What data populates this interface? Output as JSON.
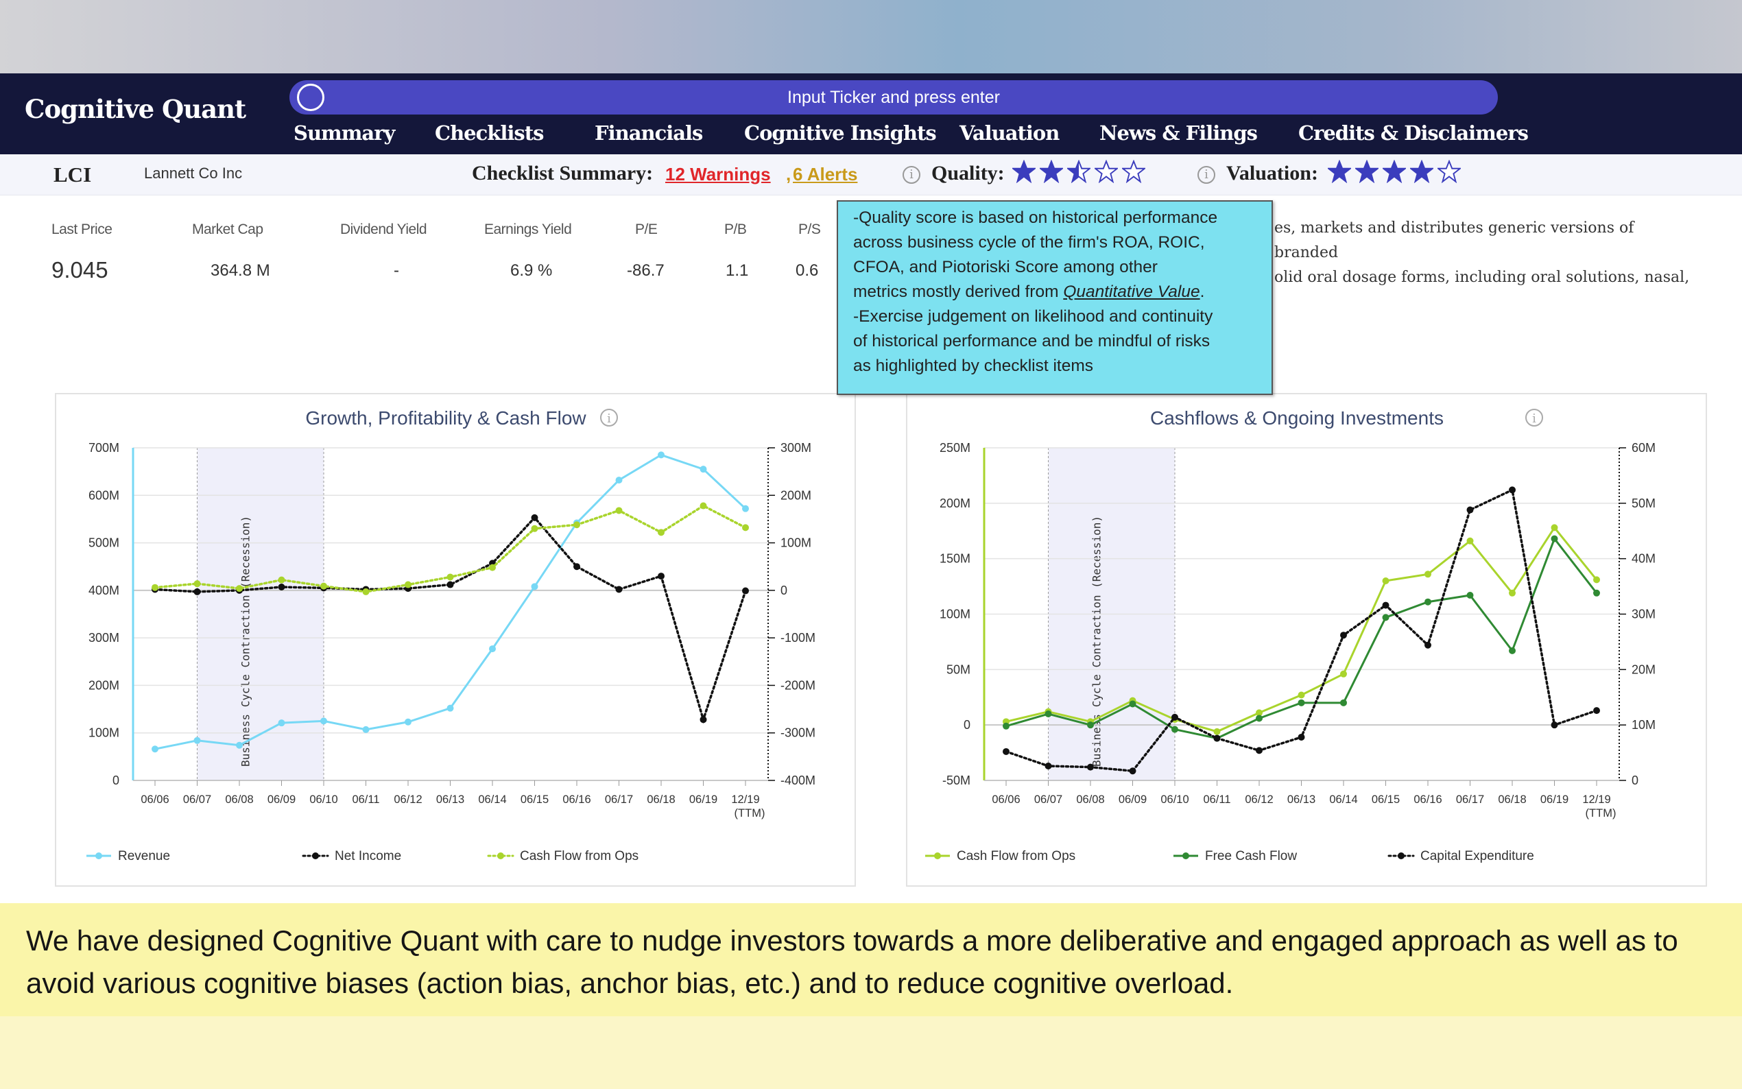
{
  "app": {
    "title": "Cognitive Quant"
  },
  "search": {
    "placeholder": "Input Ticker and press enter"
  },
  "nav": {
    "items": [
      "Summary",
      "Checklists",
      "Financials",
      "Cognitive Insights",
      "Valuation",
      "News & Filings",
      "Credits & Disclaimers"
    ]
  },
  "summary": {
    "ticker": "LCI",
    "company": "Lannett Co Inc",
    "checklist_label": "Checklist Summary:",
    "warnings": "12 Warnings",
    "sep": ",",
    "alerts": "6 Alerts",
    "quality_label": "Quality:",
    "quality_stars": 2.5,
    "valuation_label": "Valuation:",
    "valuation_stars": 4
  },
  "metrics": [
    {
      "label": "Last Price",
      "value": "9.045"
    },
    {
      "label": "Market Cap",
      "value": "364.8 M"
    },
    {
      "label": "Dividend Yield",
      "value": "-"
    },
    {
      "label": "Earnings Yield",
      "value": "6.9 %"
    },
    {
      "label": "P/E",
      "value": "-86.7"
    },
    {
      "label": "P/B",
      "value": "1.1"
    },
    {
      "label": "P/S",
      "value": "0.6"
    }
  ],
  "description": {
    "line1": "es, markets and distributes generic versions of branded",
    "line2": "olid oral dosage forms, including oral solutions, nasal,"
  },
  "tooltip": {
    "line1": "-Quality score is based on historical performance",
    "line2": "across business cycle of the firm's ROA, ROIC,",
    "line3": "CFOA, and Piotoriski Score among other",
    "line4_pre": "metrics mostly derived from ",
    "line4_link": "Quantitative Value",
    "line4_post": ".",
    "line5": "-Exercise judgement on likelihood and continuity",
    "line6": "of historical performance and be mindful of risks",
    "line7": "as highlighted by checklist items"
  },
  "colors": {
    "navbar": "#14173a",
    "search": "#4a48c2",
    "star": "#3b3dbd",
    "revenue": "#77d8f5",
    "net_income": "#111111",
    "cfo": "#a9d42c",
    "fcf": "#2f8a33",
    "capex": "#111111",
    "recession": "#efeffa",
    "tooltip": "#7de1f0",
    "banner": "#faf5a9"
  },
  "chart_data": [
    {
      "type": "line",
      "title": "Growth, Profitability & Cash Flow",
      "x": [
        "06/06",
        "06/07",
        "06/08",
        "06/09",
        "06/10",
        "06/11",
        "06/12",
        "06/13",
        "06/14",
        "06/15",
        "06/16",
        "06/17",
        "06/18",
        "06/19",
        "12/19"
      ],
      "x_last_sub": "(TTM)",
      "shade_label": "Business Cycle Contraction (Recession)",
      "shade_range": [
        "06/07",
        "06/10"
      ],
      "y_left": {
        "min": 0,
        "max": 700,
        "ticks": [
          0,
          100,
          200,
          300,
          400,
          500,
          600,
          700
        ],
        "tick_labels": [
          "0",
          "100M",
          "200M",
          "300M",
          "400M",
          "500M",
          "600M",
          "700M"
        ]
      },
      "y_right": {
        "min": -400,
        "max": 300,
        "ticks": [
          -400,
          -300,
          -200,
          -100,
          0,
          100,
          200,
          300
        ],
        "tick_labels": [
          "-400M",
          "-300M",
          "-200M",
          "-100M",
          "0",
          "100M",
          "200M",
          "300M"
        ]
      },
      "series": [
        {
          "name": "Revenue",
          "axis": "left",
          "style": "solid",
          "color": "#77d8f5",
          "values": [
            66,
            84,
            74,
            121,
            125,
            107,
            123,
            152,
            277,
            408,
            542,
            632,
            685,
            655,
            572
          ]
        },
        {
          "name": "Net Income",
          "axis": "right",
          "style": "dotted",
          "color": "#111111",
          "values": [
            2,
            -3,
            0,
            7,
            5,
            2,
            4,
            12,
            57,
            153,
            50,
            2,
            30,
            -272,
            -1
          ]
        },
        {
          "name": "Cash Flow from Ops",
          "axis": "right",
          "style": "dotted",
          "color": "#a9d42c",
          "values": [
            6,
            14,
            4,
            22,
            9,
            -3,
            12,
            28,
            48,
            130,
            138,
            168,
            122,
            178,
            132
          ]
        }
      ]
    },
    {
      "type": "line",
      "title": "Cashflows & Ongoing Investments",
      "x": [
        "06/06",
        "06/07",
        "06/08",
        "06/09",
        "06/10",
        "06/11",
        "06/12",
        "06/13",
        "06/14",
        "06/15",
        "06/16",
        "06/17",
        "06/18",
        "06/19",
        "12/19"
      ],
      "x_last_sub": "(TTM)",
      "shade_label": "Business Cycle Contraction (Recession)",
      "shade_range": [
        "06/07",
        "06/10"
      ],
      "y_left": {
        "min": -50,
        "max": 250,
        "ticks": [
          -50,
          0,
          50,
          100,
          150,
          200,
          250
        ],
        "tick_labels": [
          "-50M",
          "0",
          "50M",
          "100M",
          "150M",
          "200M",
          "250M"
        ]
      },
      "y_right": {
        "min": 0,
        "max": 60,
        "ticks": [
          0,
          10,
          20,
          30,
          40,
          50,
          60
        ],
        "tick_labels": [
          "0",
          "10M",
          "20M",
          "30M",
          "40M",
          "50M",
          "60M"
        ]
      },
      "series": [
        {
          "name": "Cash Flow from Ops",
          "axis": "left",
          "style": "solid",
          "color": "#a9d42c",
          "values": [
            3,
            12,
            3,
            22,
            5,
            -6,
            11,
            27,
            46,
            130,
            136,
            166,
            119,
            178,
            131
          ]
        },
        {
          "name": "Free Cash Flow",
          "axis": "left",
          "style": "solid",
          "color": "#2f8a33",
          "values": [
            -1,
            10,
            0,
            19,
            -4,
            -12,
            6,
            20,
            20,
            97,
            111,
            117,
            67,
            168,
            119
          ]
        },
        {
          "name": "Capital Expenditure",
          "axis": "right",
          "style": "dotted",
          "color": "#111111",
          "values": [
            5.2,
            2.6,
            2.4,
            1.7,
            11.4,
            7.6,
            5.4,
            7.8,
            26.2,
            31.6,
            24.4,
            48.8,
            52.4,
            10.0,
            12.6
          ]
        }
      ]
    }
  ],
  "banner": {
    "text": "We have designed Cognitive Quant with care to nudge investors towards a more deliberative and engaged approach as well as to avoid various cognitive biases (action bias, anchor bias, etc.) and to reduce cognitive overload."
  }
}
